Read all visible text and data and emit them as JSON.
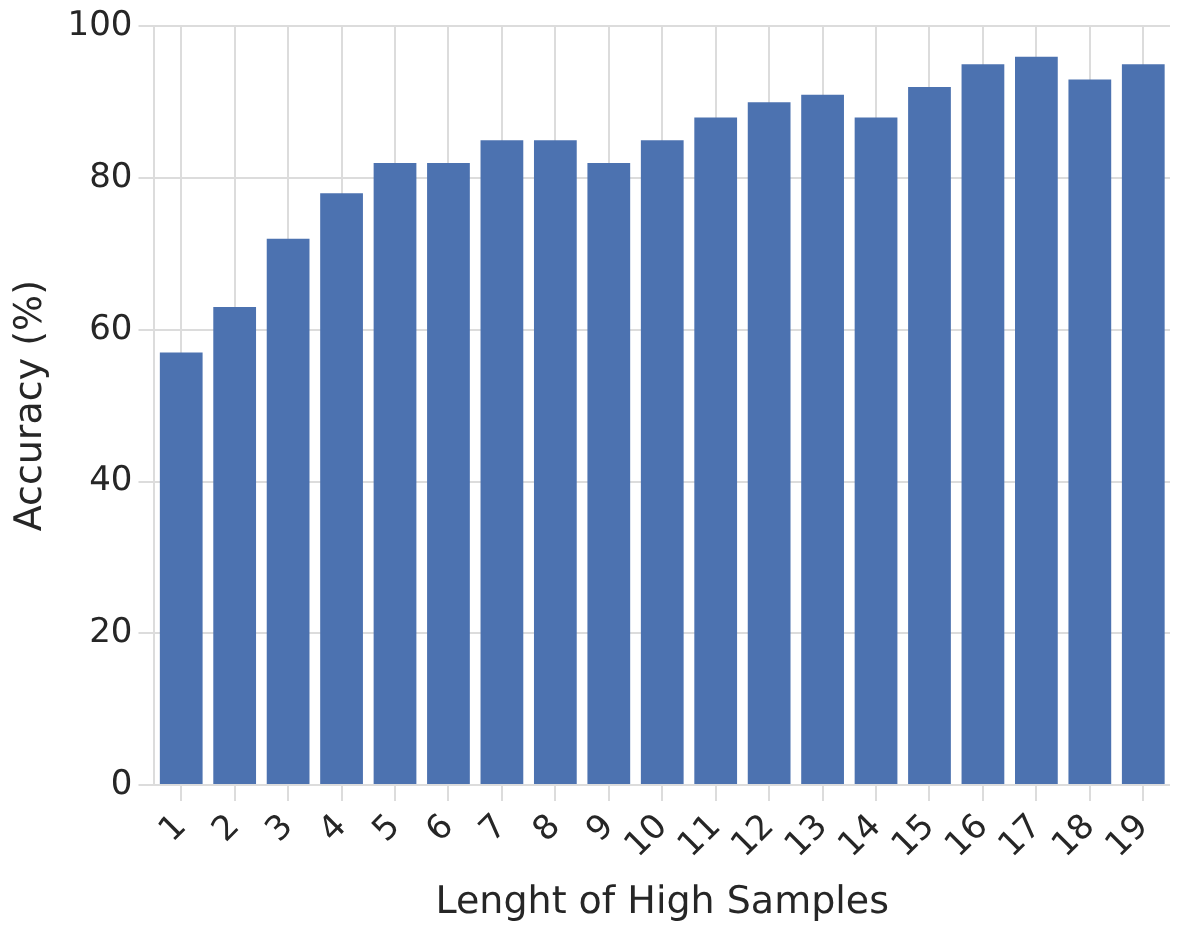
{
  "chart_data": {
    "type": "bar",
    "xlabel": "Lenght of High Samples",
    "ylabel": "Accuracy (%)",
    "categories": [
      "1",
      "2",
      "3",
      "4",
      "5",
      "6",
      "7",
      "8",
      "9",
      "10",
      "11",
      "12",
      "13",
      "14",
      "15",
      "16",
      "17",
      "18",
      "19"
    ],
    "values": [
      57,
      63,
      72,
      78,
      82,
      82,
      85,
      85,
      82,
      85,
      88,
      90,
      91,
      88,
      92,
      95,
      96,
      93,
      95
    ],
    "color": "#4c72b0",
    "ylim": [
      0,
      100
    ],
    "yticks": [
      0,
      20,
      40,
      60,
      80,
      100
    ],
    "grid": true
  }
}
